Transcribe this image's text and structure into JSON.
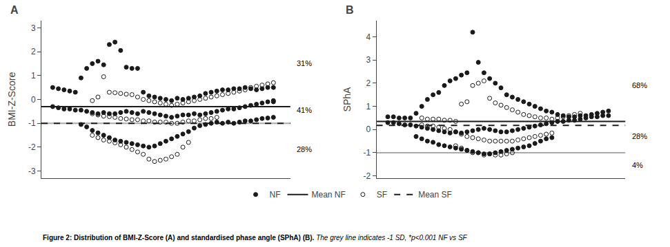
{
  "chart_data": [
    {
      "type": "scatter",
      "title": "A",
      "ylabel": "BMI-Z-Score",
      "xlim": [
        -1,
        43
      ],
      "ylim": [
        -3.3,
        3.3
      ],
      "yticks": [
        -3,
        -2,
        -1,
        0,
        1,
        2,
        3
      ],
      "tick_labels": "y",
      "grid": false,
      "legend": "bottom",
      "series": [
        {
          "type": "hline",
          "color": "#aaaaaa",
          "line_style": "solid",
          "values": [
            -1.0
          ]
        },
        {
          "name": "NF",
          "type": "scatter",
          "color": "#1a1a1a",
          "marker": "filled",
          "x": [
            1,
            2,
            3,
            4,
            5,
            6,
            7,
            8,
            9,
            10,
            11,
            12,
            13,
            14,
            15,
            16,
            17,
            18,
            19,
            20,
            21,
            22,
            23,
            24,
            25,
            26,
            27,
            28,
            29,
            30,
            31,
            32,
            33,
            34,
            35,
            36,
            37,
            38,
            39,
            40,
            1,
            2,
            3,
            4,
            5,
            6,
            7,
            8,
            9,
            10,
            11,
            12,
            13,
            14,
            15,
            16,
            17,
            18,
            19,
            20,
            21,
            22,
            23,
            24,
            25,
            26,
            27,
            28,
            29,
            30,
            31,
            32,
            33,
            34,
            35,
            36,
            37,
            38,
            39,
            40,
            40,
            6,
            7,
            8,
            9,
            10,
            11,
            12,
            13,
            14,
            15,
            16,
            17,
            18,
            19,
            20,
            21,
            22,
            23,
            24,
            25,
            26,
            27,
            28,
            29,
            30,
            31,
            32,
            33,
            34,
            35,
            36,
            37,
            38,
            39,
            40
          ],
          "values": [
            0.5,
            0.45,
            0.4,
            0.35,
            0.3,
            0.9,
            1.3,
            1.5,
            1.6,
            1.45,
            2.3,
            2.4,
            2.05,
            1.35,
            1.3,
            1.3,
            0.3,
            0.15,
            0.1,
            0.05,
            0.0,
            -0.05,
            0.05,
            0.0,
            0.05,
            0.1,
            0.15,
            0.25,
            0.3,
            0.35,
            0.4,
            0.4,
            0.45,
            0.45,
            0.5,
            0.45,
            0.4,
            0.45,
            0.5,
            0.5,
            -0.3,
            -0.35,
            -0.4,
            -0.4,
            -0.45,
            -0.45,
            -0.5,
            -0.55,
            -0.6,
            -0.55,
            -0.6,
            -0.6,
            -0.55,
            -0.5,
            -0.55,
            -0.6,
            -0.5,
            -0.55,
            -0.6,
            -0.65,
            -0.7,
            -0.75,
            -0.7,
            -0.65,
            -0.65,
            -0.6,
            -0.65,
            -0.6,
            -0.55,
            -0.5,
            -0.45,
            -0.4,
            -0.4,
            -0.35,
            -0.3,
            -0.25,
            -0.2,
            -0.15,
            -0.1,
            -0.05,
            -0.1,
            -1.05,
            -1.15,
            -1.3,
            -1.4,
            -1.5,
            -1.6,
            -1.7,
            -1.75,
            -1.8,
            -1.85,
            -1.9,
            -1.95,
            -2.0,
            -1.95,
            -1.85,
            -1.75,
            -1.65,
            -1.55,
            -1.45,
            -1.35,
            -1.2,
            -1.1,
            -1.05,
            -1.0,
            -0.95,
            -1.0,
            -0.95,
            -1.0,
            -0.95,
            -0.9,
            -0.9,
            -0.85,
            -0.8,
            -0.78,
            -0.75
          ]
        },
        {
          "name": "Mean NF",
          "type": "hline",
          "color": "#1a1a1a",
          "line_style": "solid",
          "values": [
            -0.3
          ]
        },
        {
          "name": "SF",
          "type": "scatter",
          "color": "#1a1a1a",
          "marker": "open",
          "x": [
            8,
            9,
            10,
            11,
            12,
            13,
            14,
            15,
            16,
            17,
            18,
            19,
            20,
            21,
            22,
            23,
            24,
            25,
            26,
            27,
            28,
            29,
            30,
            31,
            32,
            33,
            34,
            35,
            36,
            37,
            38,
            39,
            40,
            8,
            9,
            10,
            11,
            12,
            13,
            14,
            15,
            16,
            17,
            18,
            19,
            20,
            21,
            22,
            23,
            24,
            25,
            26,
            27,
            28,
            29,
            30,
            8,
            9,
            10,
            11,
            12,
            13,
            14,
            15,
            16,
            17,
            18,
            19,
            20,
            21,
            22,
            23,
            24,
            25
          ],
          "values": [
            -0.05,
            0.1,
            0.95,
            0.3,
            0.28,
            0.25,
            0.22,
            0.2,
            0.1,
            0.0,
            -0.05,
            -0.1,
            -0.15,
            -0.2,
            -0.25,
            -0.2,
            -0.15,
            -0.1,
            -0.05,
            0.0,
            0.05,
            0.1,
            0.15,
            0.2,
            0.25,
            0.3,
            0.35,
            0.4,
            0.5,
            0.55,
            0.6,
            0.65,
            0.7,
            -0.6,
            -0.65,
            -0.7,
            -0.72,
            -0.75,
            -0.8,
            -0.82,
            -0.85,
            -0.85,
            -0.9,
            -0.9,
            -0.95,
            -0.95,
            -0.95,
            -1.0,
            -1.0,
            -0.95,
            -0.9,
            -0.9,
            -0.85,
            -0.8,
            -0.8,
            -0.75,
            -1.5,
            -1.6,
            -1.7,
            -1.75,
            -1.82,
            -1.9,
            -2.0,
            -2.1,
            -2.2,
            -2.3,
            -2.5,
            -2.6,
            -2.55,
            -2.5,
            -2.4,
            -2.3,
            -2.0,
            -1.8
          ]
        },
        {
          "name": "Mean SF",
          "type": "hline",
          "color": "#1a1a1a",
          "line_style": "dashed",
          "values": [
            -1.0
          ]
        }
      ],
      "annotations": [
        {
          "text": "31%",
          "y": 1.5
        },
        {
          "text": "41%",
          "y": -0.45
        },
        {
          "text": "28%",
          "y": -2.1
        }
      ]
    },
    {
      "type": "scatter",
      "title": "B",
      "ylabel": "SPhA",
      "xlim": [
        -1,
        43
      ],
      "ylim": [
        -2.1,
        4.7
      ],
      "yticks": [
        -2,
        -1,
        0,
        1,
        2,
        3,
        4
      ],
      "tick_labels": "y",
      "grid": false,
      "series": [
        {
          "type": "hline",
          "color": "#aaaaaa",
          "line_style": "solid",
          "values": [
            -1.0
          ]
        },
        {
          "name": "NF",
          "type": "scatter",
          "color": "#1a1a1a",
          "marker": "filled",
          "x": [
            1,
            2,
            3,
            4,
            5,
            6,
            7,
            8,
            9,
            10,
            11,
            12,
            13,
            14,
            15,
            16,
            17,
            18,
            19,
            20,
            21,
            22,
            23,
            24,
            25,
            26,
            27,
            28,
            29,
            30,
            31,
            32,
            33,
            34,
            35,
            36,
            37,
            38,
            39,
            40,
            1,
            2,
            3,
            4,
            5,
            6,
            7,
            8,
            9,
            10,
            11,
            12,
            13,
            14,
            15,
            16,
            17,
            18,
            19,
            20,
            21,
            22,
            23,
            24,
            25,
            26,
            27,
            28,
            29,
            30,
            31,
            32,
            33,
            34,
            35,
            36,
            37,
            38,
            39,
            40,
            6,
            7,
            8,
            9,
            10,
            11,
            12,
            13,
            14,
            15,
            16,
            17,
            18,
            19,
            20,
            21,
            22,
            23,
            24,
            25,
            26,
            27,
            28,
            29,
            30
          ],
          "values": [
            0.55,
            0.55,
            0.5,
            0.5,
            0.5,
            0.7,
            1.0,
            1.3,
            1.5,
            1.6,
            1.9,
            2.1,
            2.2,
            2.35,
            2.45,
            4.2,
            2.9,
            2.45,
            2.2,
            2.0,
            1.8,
            1.5,
            1.4,
            1.3,
            1.2,
            1.1,
            1.0,
            0.9,
            0.8,
            0.75,
            0.65,
            0.6,
            0.55,
            0.55,
            0.6,
            0.6,
            0.65,
            0.7,
            0.75,
            0.8,
            0.3,
            0.3,
            0.25,
            0.2,
            0.2,
            0.15,
            0.1,
            0.05,
            0.0,
            -0.05,
            -0.1,
            -0.15,
            -0.1,
            -0.15,
            -0.1,
            -0.05,
            0.0,
            0.05,
            0.0,
            -0.05,
            -0.1,
            -0.1,
            -0.05,
            0.0,
            0.05,
            0.1,
            0.15,
            0.2,
            0.25,
            0.3,
            0.35,
            0.35,
            0.4,
            0.4,
            0.45,
            0.5,
            0.55,
            0.55,
            0.6,
            0.6,
            -0.3,
            -0.4,
            -0.5,
            -0.55,
            -0.65,
            -0.7,
            -0.75,
            -0.8,
            -0.85,
            -0.9,
            -0.95,
            -1.0,
            -1.05,
            -1.05,
            -1.0,
            -0.95,
            -0.9,
            -0.85,
            -0.8,
            -0.75,
            -0.7,
            -0.6,
            -0.5,
            -0.4,
            -0.35
          ]
        },
        {
          "name": "Mean NF",
          "type": "hline",
          "color": "#1a1a1a",
          "line_style": "solid",
          "values": [
            0.35
          ]
        },
        {
          "name": "SF",
          "type": "scatter",
          "color": "#1a1a1a",
          "marker": "open",
          "x": [
            7,
            8,
            9,
            10,
            11,
            12,
            13,
            14,
            15,
            16,
            17,
            18,
            19,
            20,
            21,
            22,
            23,
            24,
            25,
            26,
            27,
            28,
            29,
            30,
            31,
            32,
            33,
            34,
            35,
            7,
            8,
            9,
            10,
            11,
            12,
            13,
            14,
            15,
            16,
            17,
            18,
            19,
            20,
            21,
            22,
            23,
            24,
            25,
            26,
            27,
            28,
            29,
            30,
            13,
            14,
            15,
            16,
            17,
            18,
            19,
            20,
            21,
            22,
            23
          ],
          "values": [
            0.5,
            0.45,
            0.45,
            0.45,
            0.4,
            0.4,
            0.35,
            1.1,
            1.2,
            1.9,
            2.0,
            2.1,
            1.35,
            1.15,
            1.05,
            0.95,
            0.85,
            0.75,
            0.65,
            0.6,
            0.55,
            0.5,
            0.5,
            0.45,
            0.5,
            0.55,
            0.6,
            0.65,
            0.7,
            0.2,
            0.15,
            0.15,
            0.1,
            0.05,
            0.0,
            -0.1,
            -0.2,
            -0.3,
            -0.35,
            -0.4,
            -0.45,
            -0.5,
            -0.5,
            -0.5,
            -0.5,
            -0.5,
            -0.45,
            -0.4,
            -0.35,
            -0.3,
            -0.25,
            -0.2,
            -0.15,
            -0.7,
            -0.8,
            -0.9,
            -1.0,
            -1.0,
            -1.1,
            -1.05,
            -1.1,
            -1.1,
            -1.05,
            -1.0
          ]
        },
        {
          "name": "Mean SF",
          "type": "hline",
          "color": "#1a1a1a",
          "line_style": "dashed",
          "values": [
            0.18
          ]
        }
      ],
      "annotations": [
        {
          "text": "68%",
          "y": 1.9
        },
        {
          "text": "28%",
          "y": -0.3
        },
        {
          "text": "4%",
          "y": -1.55
        }
      ]
    }
  ],
  "caption": "Figure 2: Distribution of BMI-Z-Score (A) and standardised phase angle (SPhA) (B).",
  "caption_note": "The grey line indicates -1 SD, *p<0.001 NF vs SF"
}
